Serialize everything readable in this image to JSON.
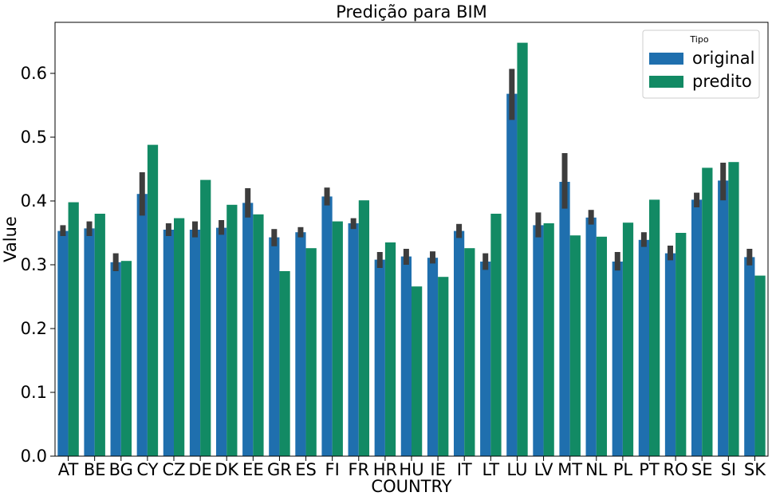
{
  "chart_data": {
    "type": "bar",
    "title": "Predição para BIM",
    "xlabel": "COUNTRY",
    "ylabel": "Value",
    "ylim": [
      0,
      0.68
    ],
    "yticks": [
      0.0,
      0.1,
      0.2,
      0.3,
      0.4,
      0.5,
      0.6
    ],
    "ytick_labels": [
      "0.0",
      "0.1",
      "0.2",
      "0.3",
      "0.4",
      "0.5",
      "0.6"
    ],
    "grid": false,
    "legend": {
      "title": "Tipo",
      "placement": "top-right"
    },
    "categories": [
      "AT",
      "BE",
      "BG",
      "CY",
      "CZ",
      "DE",
      "DK",
      "EE",
      "GR",
      "ES",
      "FI",
      "FR",
      "HR",
      "HU",
      "IE",
      "IT",
      "LT",
      "LU",
      "LV",
      "MT",
      "NL",
      "PL",
      "PT",
      "RO",
      "SE",
      "SI",
      "SK"
    ],
    "series": [
      {
        "name": "original",
        "color": "#1f6fae",
        "values": [
          0.353,
          0.357,
          0.304,
          0.411,
          0.355,
          0.355,
          0.358,
          0.397,
          0.343,
          0.351,
          0.407,
          0.365,
          0.308,
          0.313,
          0.311,
          0.353,
          0.305,
          0.568,
          0.362,
          0.43,
          0.374,
          0.305,
          0.339,
          0.318,
          0.402,
          0.432,
          0.312
        ],
        "error_low": [
          0.345,
          0.345,
          0.29,
          0.377,
          0.345,
          0.343,
          0.347,
          0.374,
          0.329,
          0.343,
          0.393,
          0.356,
          0.295,
          0.3,
          0.302,
          0.342,
          0.292,
          0.527,
          0.343,
          0.388,
          0.363,
          0.291,
          0.328,
          0.307,
          0.39,
          0.401,
          0.299
        ],
        "error_high": [
          0.362,
          0.368,
          0.318,
          0.445,
          0.365,
          0.368,
          0.37,
          0.42,
          0.356,
          0.359,
          0.421,
          0.373,
          0.32,
          0.325,
          0.321,
          0.364,
          0.318,
          0.607,
          0.382,
          0.475,
          0.386,
          0.32,
          0.351,
          0.33,
          0.413,
          0.46,
          0.325
        ]
      },
      {
        "name": "predito",
        "color": "#128a64",
        "values": [
          0.398,
          0.38,
          0.306,
          0.488,
          0.373,
          0.433,
          0.394,
          0.379,
          0.29,
          0.326,
          0.368,
          0.401,
          0.335,
          0.266,
          0.281,
          0.326,
          0.38,
          0.648,
          0.365,
          0.346,
          0.344,
          0.366,
          0.402,
          0.35,
          0.452,
          0.461,
          0.283
        ]
      }
    ],
    "error_bar_color": "#3d3d3d"
  }
}
